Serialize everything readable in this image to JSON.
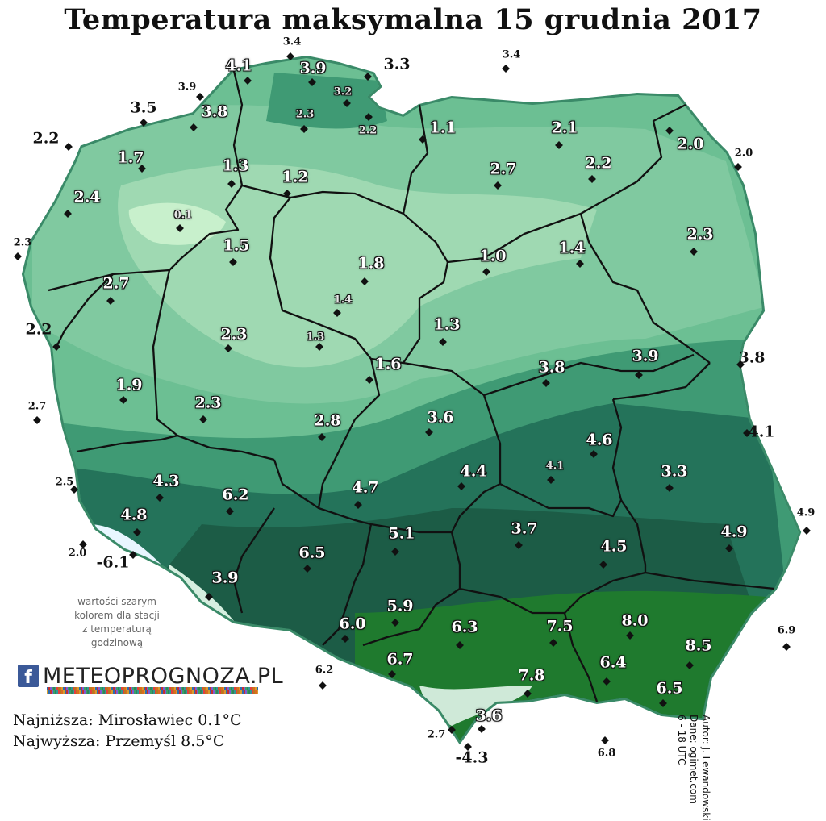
{
  "title": "Temperatura maksymalna 15 grudnia 2017",
  "legend_note": [
    "wartości szarym",
    "kolorem dla stacji",
    "z temperaturą",
    "godzinową"
  ],
  "logo": {
    "fb_letter": "f",
    "text": "METEOPROGNOZA.PL"
  },
  "stats": {
    "min": "Najniższa: Mirosławiec 0.1°C",
    "max": "Najwyższa: Przemyśl 8.5°C"
  },
  "credits": [
    "Autor: J. Lewandowski",
    "Dane: ogimet.com",
    "6 - 18 UTC"
  ],
  "colors": {
    "coldest": "#c8f0cc",
    "cold": "#9fd9b2",
    "mild": "#6cbf93",
    "warm": "#3f9a74",
    "warmer": "#24735a",
    "warmest": "#1c5c46",
    "south_bright": "#1f7a2e",
    "mountain_snow": "#e8f6ff"
  },
  "stations": [
    {
      "value": "3.4",
      "type": "outside-small"
    },
    {
      "value": "4.1",
      "type": "inside"
    },
    {
      "value": "3.9",
      "type": "inside"
    },
    {
      "value": "3.3",
      "type": "outside"
    },
    {
      "value": "3.4",
      "type": "outside-small"
    },
    {
      "value": "3.9",
      "type": "outside-small"
    },
    {
      "value": "3.2",
      "type": "gray"
    },
    {
      "value": "3.5",
      "type": "outside"
    },
    {
      "value": "3.8",
      "type": "inside"
    },
    {
      "value": "2.3",
      "type": "gray"
    },
    {
      "value": "2.2",
      "type": "gray"
    },
    {
      "value": "1.1",
      "type": "inside"
    },
    {
      "value": "2.1",
      "type": "inside"
    },
    {
      "value": "2.2",
      "type": "outside"
    },
    {
      "value": "1.7",
      "type": "inside"
    },
    {
      "value": "2.0",
      "type": "inside"
    },
    {
      "value": "2.0",
      "type": "outside-small"
    },
    {
      "value": "1.3",
      "type": "inside"
    },
    {
      "value": "1.2",
      "type": "inside"
    },
    {
      "value": "2.7",
      "type": "inside"
    },
    {
      "value": "2.2",
      "type": "inside"
    },
    {
      "value": "2.4",
      "type": "inside"
    },
    {
      "value": "0.1",
      "type": "gray"
    },
    {
      "value": "2.3",
      "type": "inside"
    },
    {
      "value": "2.3",
      "type": "outside-small"
    },
    {
      "value": "1.5",
      "type": "inside"
    },
    {
      "value": "1.8",
      "type": "inside"
    },
    {
      "value": "1.0",
      "type": "inside"
    },
    {
      "value": "1.4",
      "type": "inside"
    },
    {
      "value": "2.7",
      "type": "inside"
    },
    {
      "value": "1.4",
      "type": "gray"
    },
    {
      "value": "2.2",
      "type": "outside"
    },
    {
      "value": "1.3",
      "type": "inside"
    },
    {
      "value": "2.3",
      "type": "inside"
    },
    {
      "value": "1.3",
      "type": "gray"
    },
    {
      "value": "1.6",
      "type": "inside"
    },
    {
      "value": "3.8",
      "type": "inside"
    },
    {
      "value": "3.9",
      "type": "inside"
    },
    {
      "value": "3.8",
      "type": "outside"
    },
    {
      "value": "1.9",
      "type": "inside"
    },
    {
      "value": "2.7",
      "type": "outside-small"
    },
    {
      "value": "2.3",
      "type": "inside"
    },
    {
      "value": "3.6",
      "type": "inside"
    },
    {
      "value": "2.8",
      "type": "inside"
    },
    {
      "value": "4.6",
      "type": "inside"
    },
    {
      "value": "4.1",
      "type": "outside"
    },
    {
      "value": "4.3",
      "type": "inside"
    },
    {
      "value": "6.2",
      "type": "inside"
    },
    {
      "value": "4.4",
      "type": "inside"
    },
    {
      "value": "4.1",
      "type": "gray"
    },
    {
      "value": "3.3",
      "type": "inside"
    },
    {
      "value": "2.5",
      "type": "outside-small"
    },
    {
      "value": "4.7",
      "type": "inside"
    },
    {
      "value": "4.8",
      "type": "inside"
    },
    {
      "value": "4.9",
      "type": "outside-small"
    },
    {
      "value": "3.7",
      "type": "inside"
    },
    {
      "value": "5.1",
      "type": "inside"
    },
    {
      "value": "4.9",
      "type": "inside"
    },
    {
      "value": "2.0",
      "type": "outside-small"
    },
    {
      "value": "-6.1",
      "type": "outside-neg"
    },
    {
      "value": "6.5",
      "type": "inside"
    },
    {
      "value": "4.5",
      "type": "inside"
    },
    {
      "value": "3.9",
      "type": "inside"
    },
    {
      "value": "5.9",
      "type": "inside"
    },
    {
      "value": "6.0",
      "type": "inside"
    },
    {
      "value": "6.3",
      "type": "inside"
    },
    {
      "value": "7.5",
      "type": "inside"
    },
    {
      "value": "8.0",
      "type": "inside"
    },
    {
      "value": "6.9",
      "type": "outside-small"
    },
    {
      "value": "6.7",
      "type": "inside"
    },
    {
      "value": "8.5",
      "type": "inside"
    },
    {
      "value": "6.2",
      "type": "outside-small"
    },
    {
      "value": "7.8",
      "type": "inside"
    },
    {
      "value": "6.4",
      "type": "inside"
    },
    {
      "value": "6.5",
      "type": "inside"
    },
    {
      "value": "3.6",
      "type": "inside"
    },
    {
      "value": "2.7",
      "type": "outside-small"
    },
    {
      "value": "-4.3",
      "type": "outside-neg"
    },
    {
      "value": "6.8",
      "type": "outside-small"
    }
  ]
}
